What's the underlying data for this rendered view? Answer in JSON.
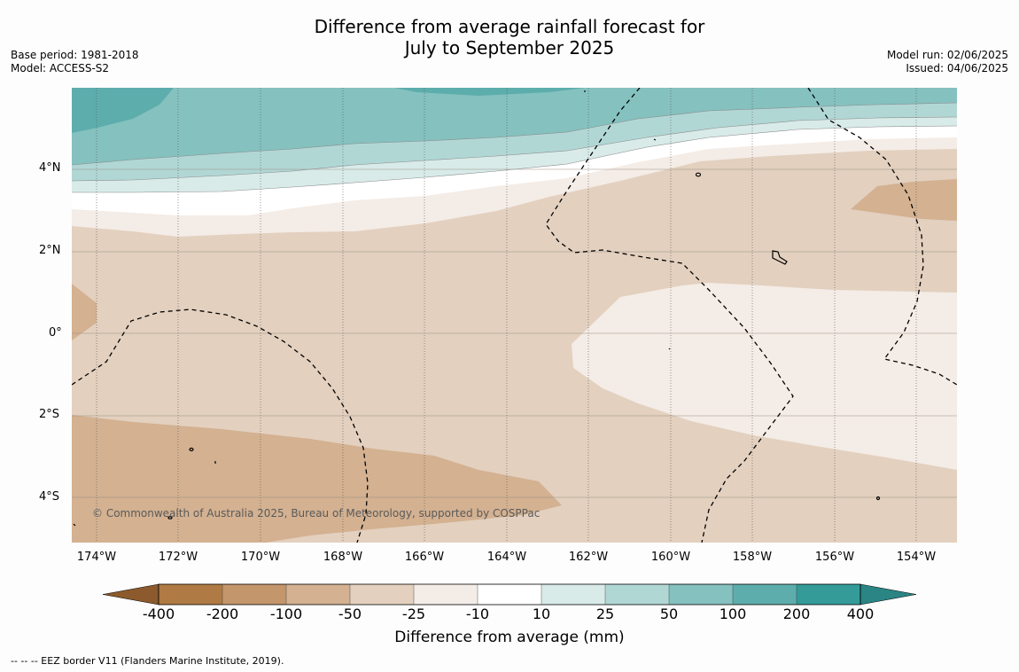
{
  "title": {
    "line1": "Difference from average rainfall forecast for",
    "line2": "July to September 2025"
  },
  "meta_left": {
    "base_period": "Base period: 1981-2018",
    "model": "Model: ACCESS-S2"
  },
  "meta_right": {
    "model_run": "Model run: 02/06/2025",
    "issued": "Issued: 04/06/2025"
  },
  "map": {
    "latitude_labels": [
      "4°N",
      "2°N",
      "0°",
      "2°S",
      "4°S"
    ],
    "longitude_labels": [
      "174°W",
      "172°W",
      "170°W",
      "168°W",
      "166°W",
      "164°W",
      "162°W",
      "160°W",
      "158°W",
      "156°W",
      "154°W"
    ],
    "credit": "© Commonwealth of Australia 2025, Bureau of Meteorology, supported by COSPPac",
    "colors": {
      "c_-100_-50": "#d3b191",
      "c_-50_-25": "#e3d0bf",
      "c_-25_-10": "#f4ece6",
      "c_-10_10": "#ffffff",
      "c_10_25": "#d8ebe9",
      "c_25_50": "#b1d7d5",
      "c_50_100": "#84c1bf",
      "c_100_200": "#5dadac"
    }
  },
  "colorbar": {
    "labels": [
      "-400",
      "-200",
      "-100",
      "-50",
      "-25",
      "-10",
      "10",
      "25",
      "50",
      "100",
      "200",
      "400"
    ],
    "colors": [
      "#8c5a2c",
      "#b07a44",
      "#c4966c",
      "#d3b191",
      "#e3d0bf",
      "#f4ece6",
      "#ffffff",
      "#d8ebe9",
      "#b1d7d5",
      "#84c1bf",
      "#5dadac",
      "#349b99",
      "#2a8584"
    ],
    "title": "Difference from average (mm)"
  },
  "legend": {
    "eez": "--  --  -- EEZ border V11 (Flanders Marine Institute, 2019)."
  }
}
